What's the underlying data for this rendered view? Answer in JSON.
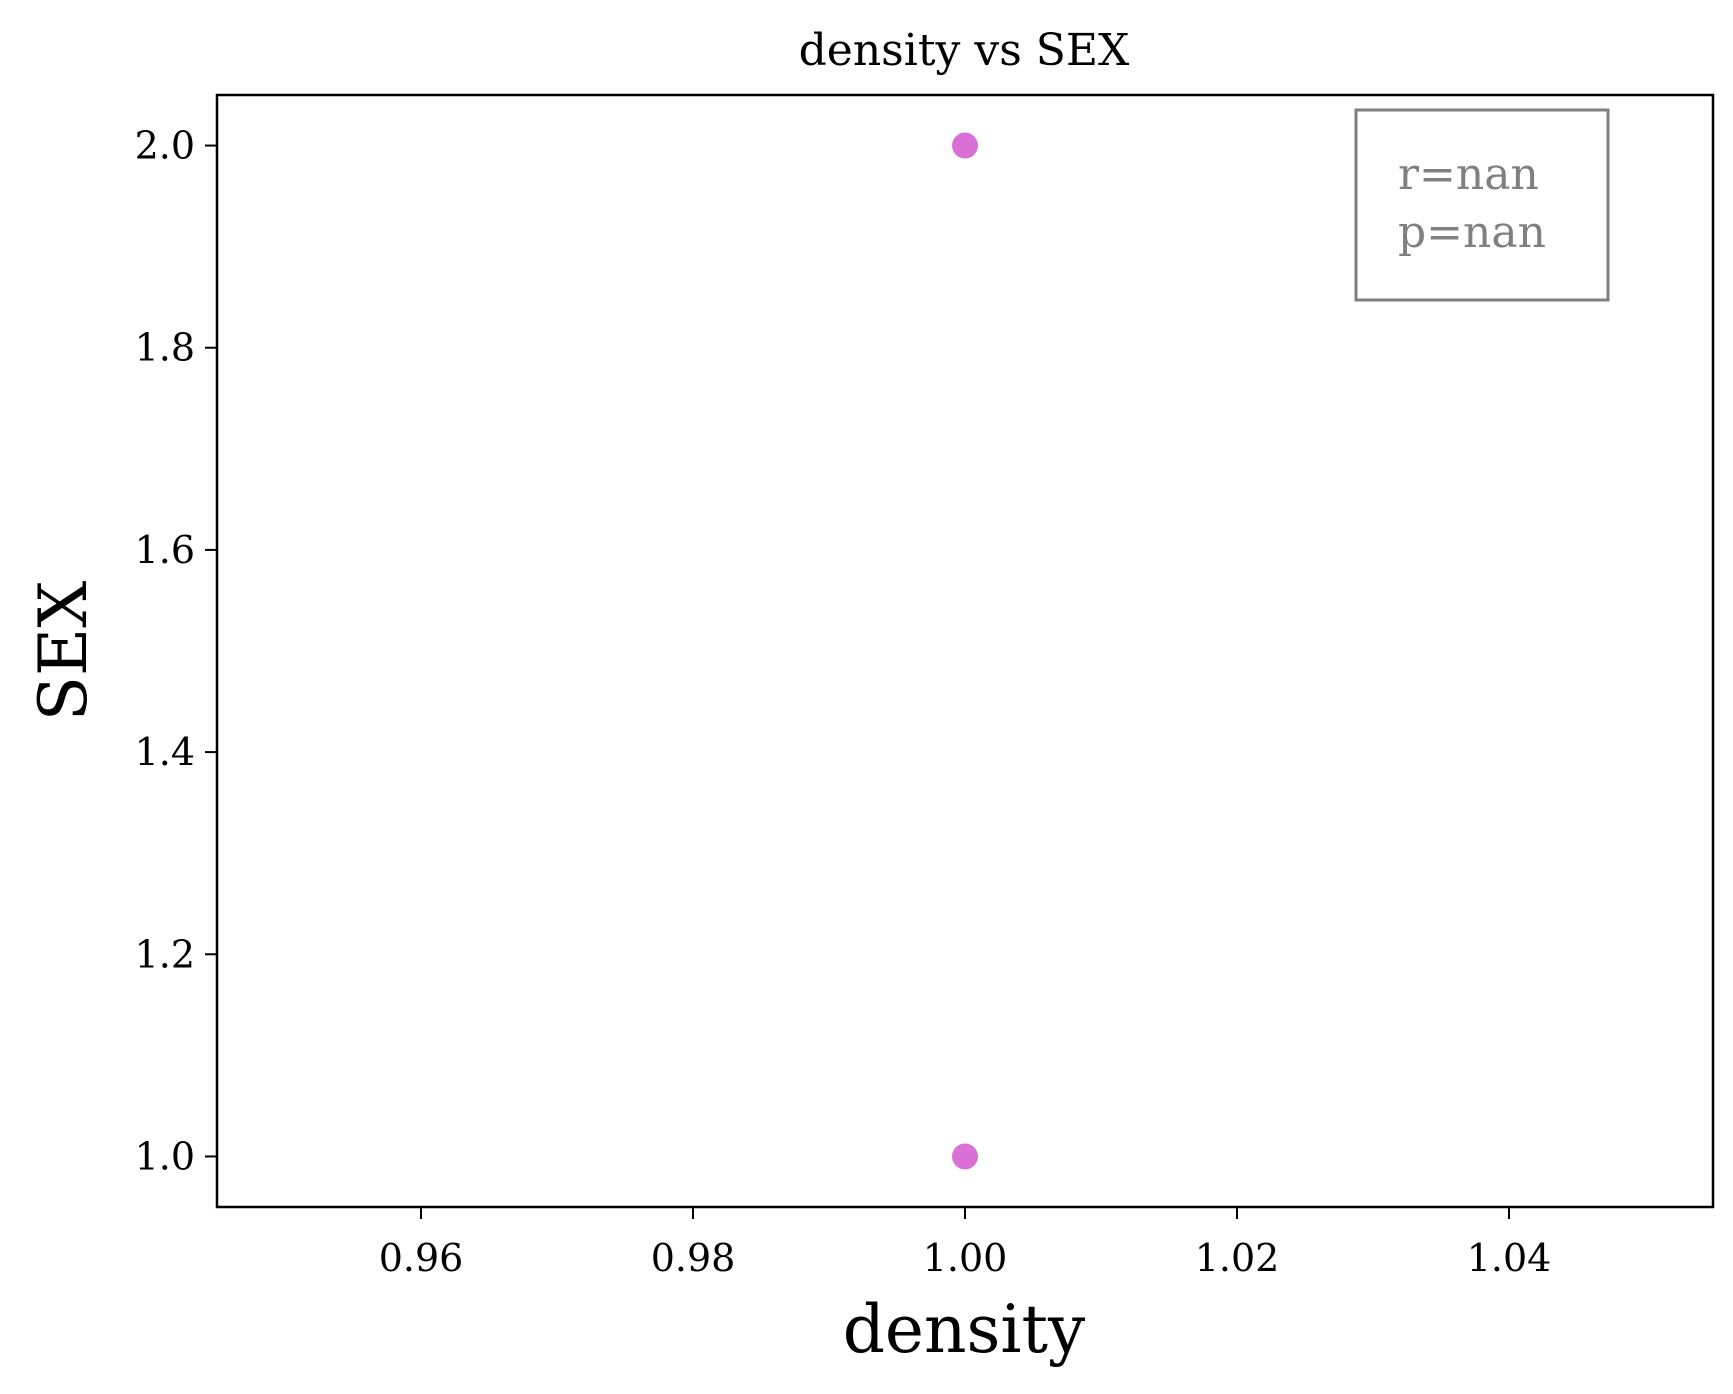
{
  "chart_data": {
    "type": "scatter",
    "title": "density vs SEX",
    "xlabel": "density",
    "ylabel": "SEX",
    "xlim": [
      0.945,
      1.055
    ],
    "ylim": [
      0.95,
      2.05
    ],
    "xticks": [
      0.96,
      0.98,
      1.0,
      1.02,
      1.04
    ],
    "xtick_labels": [
      "0.96",
      "0.98",
      "1.00",
      "1.02",
      "1.04"
    ],
    "yticks": [
      1.0,
      1.2,
      1.4,
      1.6,
      1.8,
      2.0
    ],
    "ytick_labels": [
      "1.0",
      "1.2",
      "1.4",
      "1.6",
      "1.8",
      "2.0"
    ],
    "grid": false,
    "points": [
      {
        "x": 1.0,
        "y": 2.0
      },
      {
        "x": 1.0,
        "y": 1.0
      }
    ],
    "point_color": "#da70d6",
    "annotation": {
      "lines": [
        "r=nan",
        "p=nan"
      ],
      "placement": "top-right",
      "color": "#808080"
    }
  }
}
